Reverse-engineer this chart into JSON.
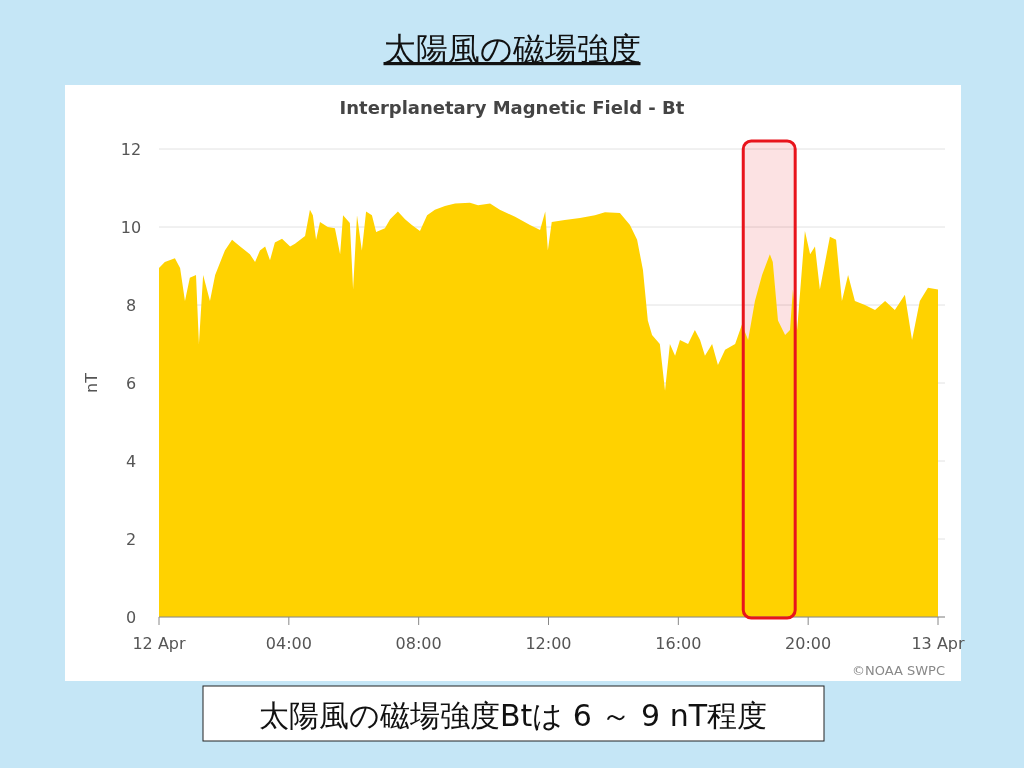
{
  "chart_data": {
    "type": "area",
    "title": "太陽風の磁場強度",
    "subtitle": "Interplanetary Magnetic Field - Bt",
    "ylabel": "nT",
    "x": [
      0,
      0.18,
      0.49,
      0.65,
      0.8,
      0.95,
      1.14,
      1.23,
      1.36,
      1.57,
      1.73,
      2.03,
      2.25,
      2.5,
      2.8,
      2.96,
      3.11,
      3.27,
      3.42,
      3.57,
      3.79,
      4.04,
      4.19,
      4.5,
      4.65,
      4.74,
      4.84,
      4.96,
      5.2,
      5.42,
      5.58,
      5.67,
      5.88,
      5.98,
      6.1,
      6.25,
      6.38,
      6.56,
      6.69,
      6.96,
      7.12,
      7.36,
      7.58,
      7.79,
      8.04,
      8.26,
      8.5,
      8.81,
      9.12,
      9.58,
      9.83,
      10.2,
      10.5,
      10.97,
      11.43,
      11.74,
      11.9,
      11.98,
      12.1,
      12.5,
      12.97,
      13.43,
      13.74,
      14.2,
      14.51,
      14.73,
      14.91,
      15.06,
      15.19,
      15.43,
      15.59,
      15.74,
      15.9,
      16.05,
      16.3,
      16.51,
      16.67,
      16.82,
      17.04,
      17.22,
      17.44,
      17.75,
      17.96,
      18.15,
      18.36,
      18.58,
      18.82,
      18.91,
      19.07,
      19.29,
      19.44,
      19.53,
      19.66,
      19.9,
      20.06,
      20.21,
      20.36,
      20.67,
      20.86,
      21.04,
      21.23,
      21.44,
      21.75,
      22.06,
      22.37,
      22.67,
      22.98,
      23.2,
      23.44,
      23.69,
      24
    ],
    "series": [
      {
        "color": "#ffd200",
        "values": [
          8.95,
          9.1,
          9.2,
          8.95,
          8.1,
          8.7,
          8.77,
          7.0,
          8.77,
          8.1,
          8.77,
          9.4,
          9.67,
          9.5,
          9.3,
          9.1,
          9.4,
          9.5,
          9.15,
          9.6,
          9.7,
          9.5,
          9.57,
          9.77,
          10.44,
          10.3,
          9.67,
          10.13,
          10.0,
          9.97,
          9.3,
          10.3,
          10.1,
          8.4,
          10.3,
          9.4,
          10.4,
          10.3,
          9.87,
          9.97,
          10.2,
          10.4,
          10.2,
          10.05,
          9.9,
          10.3,
          10.44,
          10.54,
          10.6,
          10.62,
          10.56,
          10.6,
          10.44,
          10.26,
          10.05,
          9.92,
          10.4,
          9.4,
          10.13,
          10.18,
          10.23,
          10.3,
          10.38,
          10.36,
          10.05,
          9.67,
          8.9,
          7.6,
          7.23,
          7.0,
          5.8,
          7.0,
          6.7,
          7.1,
          7.0,
          7.36,
          7.1,
          6.7,
          7.0,
          6.46,
          6.85,
          7.0,
          7.5,
          7.1,
          8.1,
          8.77,
          9.3,
          9.1,
          7.6,
          7.23,
          7.36,
          8.4,
          7.36,
          9.9,
          9.3,
          9.5,
          8.4,
          9.75,
          9.67,
          8.1,
          8.77,
          8.1,
          8.0,
          7.87,
          8.1,
          7.87,
          8.26,
          7.1,
          8.1,
          8.44,
          8.4
        ]
      }
    ],
    "xlim": [
      0,
      24
    ],
    "xticks": [
      {
        "value": 0,
        "label": "12 Apr"
      },
      {
        "value": 4,
        "label": "04:00"
      },
      {
        "value": 8,
        "label": "08:00"
      },
      {
        "value": 12,
        "label": "12:00"
      },
      {
        "value": 16,
        "label": "16:00"
      },
      {
        "value": 20,
        "label": "20:00"
      },
      {
        "value": 24,
        "label": "13 Apr"
      }
    ],
    "ylim": [
      0,
      12
    ],
    "yticks": [
      0,
      2,
      4,
      6,
      8,
      10,
      12
    ],
    "grid": "y",
    "bands": [
      {
        "axis": "x",
        "from": 18,
        "to": 19.6,
        "color": "#e8141c"
      }
    ],
    "annotations": [
      "©NOAA SWPC",
      "太陽風の磁場強度Btは 6 ～ 9 nT程度"
    ]
  }
}
